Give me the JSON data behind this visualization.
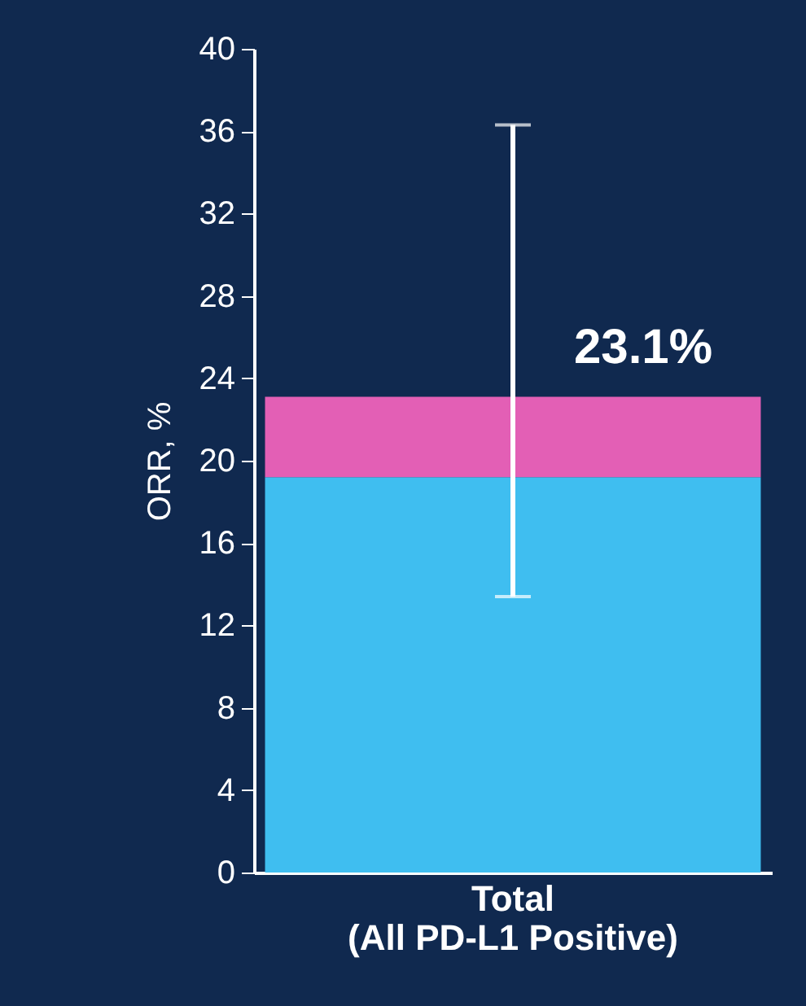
{
  "chart_data": {
    "type": "bar",
    "stacked": true,
    "ylabel": "ORR, %",
    "categories": [
      "Total\n(All PD-L1 Positive)"
    ],
    "series": [
      {
        "color": "#3fbef0",
        "values": [
          19.2
        ]
      },
      {
        "color": "#e35fb5",
        "values": [
          3.9
        ],
        "errors": [
          [
            13.4,
            36.3
          ]
        ]
      }
    ],
    "totals": [
      "23.1%"
    ],
    "ylim": [
      0,
      40
    ],
    "yticks": [
      0,
      4,
      8,
      12,
      16,
      20,
      24,
      28,
      32,
      36,
      40
    ]
  }
}
